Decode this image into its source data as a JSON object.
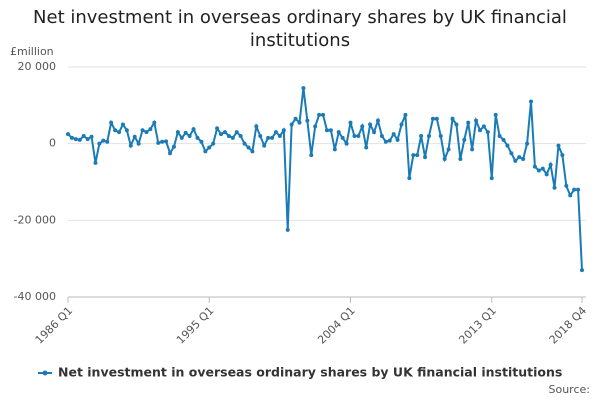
{
  "chart_data": {
    "type": "line",
    "title": "Net investment in overseas ordinary shares by UK financial institutions",
    "y_label": "£million",
    "source": "Source:",
    "categories": [
      "1986 Q1",
      null,
      null,
      null,
      null,
      null,
      null,
      null,
      null,
      null,
      null,
      null,
      null,
      null,
      null,
      null,
      null,
      null,
      null,
      null,
      null,
      null,
      null,
      null,
      null,
      null,
      null,
      null,
      null,
      null,
      null,
      null,
      null,
      null,
      null,
      null,
      "1995 Q1",
      null,
      null,
      null,
      null,
      null,
      null,
      null,
      null,
      null,
      null,
      null,
      null,
      null,
      null,
      null,
      null,
      null,
      null,
      null,
      null,
      null,
      null,
      null,
      null,
      null,
      null,
      null,
      null,
      null,
      null,
      null,
      null,
      null,
      null,
      null,
      "2004 Q1",
      null,
      null,
      null,
      null,
      null,
      null,
      null,
      null,
      null,
      null,
      null,
      null,
      null,
      null,
      null,
      null,
      null,
      null,
      null,
      null,
      null,
      null,
      null,
      null,
      null,
      null,
      null,
      null,
      null,
      null,
      null,
      null,
      null,
      null,
      null,
      "2013 Q1",
      null,
      null,
      null,
      null,
      null,
      null,
      null,
      null,
      null,
      null,
      null,
      null,
      null,
      null,
      null,
      null,
      null,
      null,
      null,
      null,
      null,
      null,
      "2018 Q4"
    ],
    "series": [
      {
        "name": "Net investment in overseas ordinary shares by UK financial institutions",
        "color": "#1b7bb7",
        "values": [
          2500,
          1500,
          1200,
          1000,
          2000,
          1200,
          1800,
          -5000,
          0,
          800,
          500,
          5500,
          3500,
          3000,
          5000,
          3500,
          -500,
          1800,
          0,
          3500,
          3000,
          3800,
          5500,
          200,
          500,
          600,
          -2500,
          -800,
          3000,
          1500,
          2800,
          2000,
          3800,
          1500,
          500,
          -2000,
          -1000,
          0,
          4000,
          2500,
          3000,
          2000,
          1500,
          3000,
          2000,
          0,
          -1000,
          -2000,
          4500,
          2000,
          -500,
          1500,
          1500,
          3000,
          2000,
          3500,
          -22500,
          5000,
          6500,
          5500,
          14500,
          6000,
          -3000,
          4500,
          7500,
          7500,
          3500,
          3500,
          -1500,
          3000,
          1500,
          0,
          5500,
          2000,
          2000,
          4500,
          -1000,
          5000,
          3000,
          6000,
          2000,
          500,
          800,
          2500,
          1000,
          5000,
          7500,
          -9000,
          -3000,
          -3000,
          2000,
          -3500,
          2000,
          6500,
          6500,
          2000,
          -4000,
          -1500,
          6500,
          5000,
          -4000,
          1000,
          5500,
          -1500,
          6000,
          3500,
          4500,
          3000,
          -9000,
          7500,
          2000,
          1000,
          -500,
          -2500,
          -4500,
          -3500,
          -4000,
          0,
          11000,
          -6000,
          -7000,
          -6500,
          -8000,
          -5500,
          -11500,
          -500,
          -3000,
          -11000,
          -13500,
          -12000,
          -12000,
          -33000
        ]
      }
    ],
    "ylim": [
      -40000,
      20000
    ],
    "yticks": [
      {
        "value": -40000,
        "label": "-40 000"
      },
      {
        "value": -20000,
        "label": "-20 000"
      },
      0,
      {
        "value": 20000,
        "label": "20 000"
      }
    ],
    "grid": true,
    "legend": "bottom"
  }
}
